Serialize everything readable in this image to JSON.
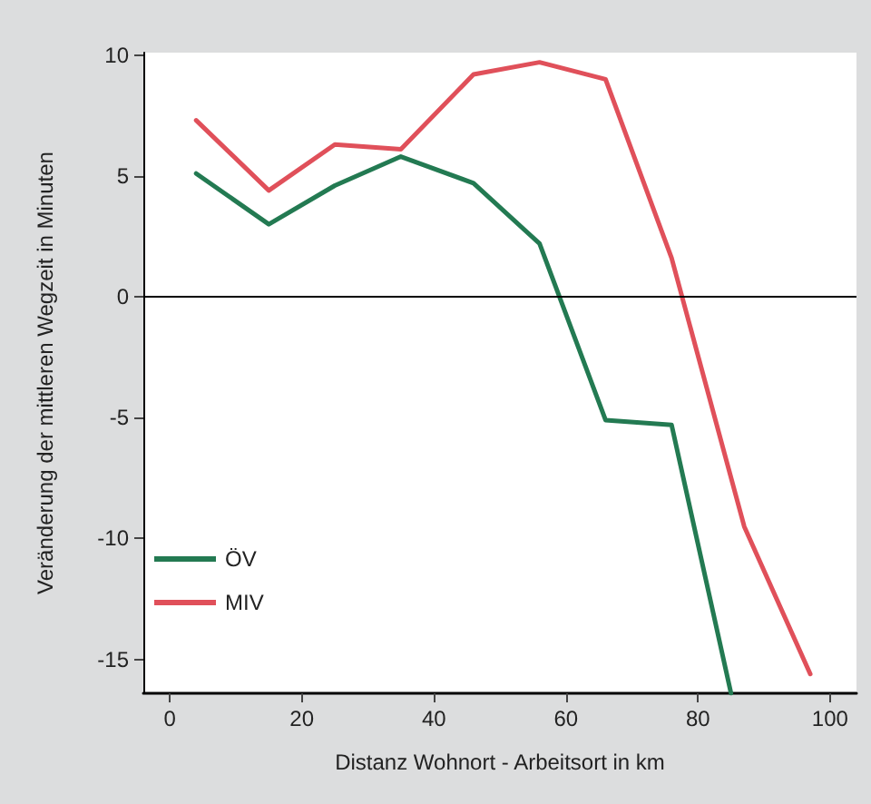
{
  "chart_data": {
    "type": "line",
    "xlabel": "Distanz Wohnort - Arbeitsort in km",
    "ylabel": "Veränderung der mittleren Wegzeit in Minuten",
    "series": [
      {
        "name": "ÖV",
        "color": "#237a52",
        "x": [
          4,
          15,
          25,
          35,
          46,
          56,
          66,
          76,
          85
        ],
        "values": [
          5.1,
          3.0,
          4.6,
          5.8,
          4.7,
          2.2,
          -5.1,
          -5.3,
          -16.4
        ]
      },
      {
        "name": "MIV",
        "color": "#e0505a",
        "x": [
          4,
          15,
          25,
          35,
          46,
          56,
          66,
          76,
          87,
          97
        ],
        "values": [
          7.3,
          4.4,
          6.3,
          6.1,
          9.2,
          9.7,
          9.0,
          1.6,
          -9.5,
          -15.6
        ]
      }
    ],
    "xlim": [
      -4,
      104
    ],
    "xticks": [
      0,
      20,
      40,
      60,
      80,
      100
    ],
    "ylim": [
      -16.4,
      10.1
    ],
    "yticks": [
      -15,
      -10,
      -5,
      0,
      5,
      10
    ],
    "ref_lines": [
      {
        "axis": "y",
        "value": 0,
        "color": "#000000",
        "line_style": "solid"
      }
    ],
    "grid": false,
    "legend": "bottom left",
    "marker": "none",
    "line_style": "solid"
  }
}
